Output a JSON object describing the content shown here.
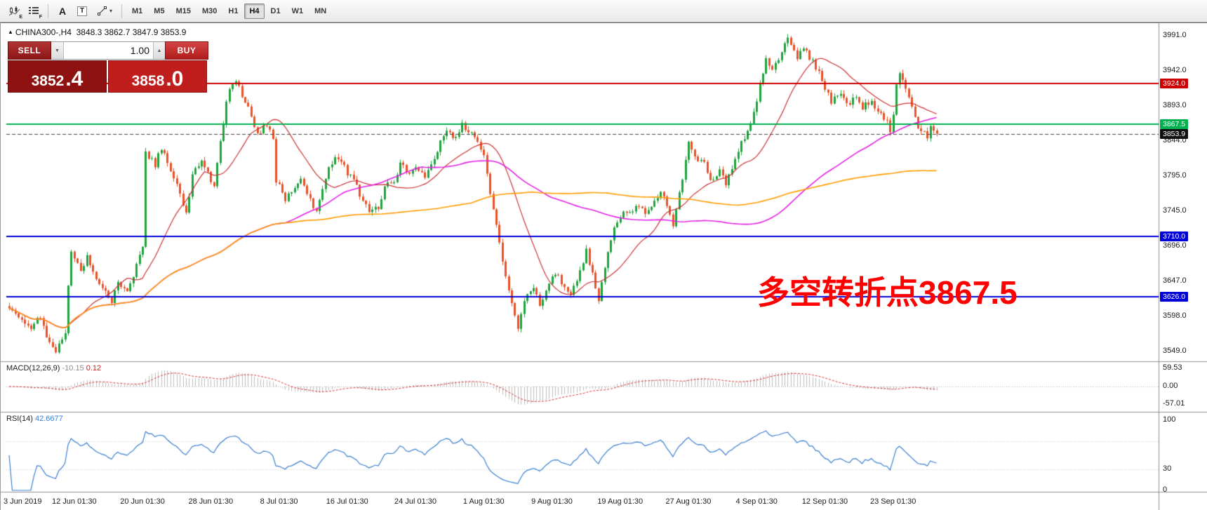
{
  "toolbar": {
    "tools": [
      {
        "name": "candlestick-tool",
        "sub": "E"
      },
      {
        "name": "list-tool",
        "sub": "F"
      },
      {
        "name": "text-tool",
        "glyph": "A"
      },
      {
        "name": "textbox-tool",
        "glyph": "T"
      },
      {
        "name": "draw-tool",
        "caret": "▾"
      }
    ],
    "timeframes": [
      "M1",
      "M5",
      "M15",
      "M30",
      "H1",
      "H4",
      "D1",
      "W1",
      "MN"
    ],
    "selected_timeframe": "H4"
  },
  "chart": {
    "header": {
      "collapse_icon": "▲",
      "symbol": "CHINA300-,H4",
      "ohlc_text": "3848.3 3862.7 3847.9 3853.9"
    },
    "one_click": {
      "sell_label": "SELL",
      "buy_label": "BUY",
      "volume": "1.00",
      "sell_price": "3852.4",
      "buy_price": "3858.0",
      "sell_price_main": "3852",
      "sell_price_big": ".4",
      "buy_price_main": "3858",
      "buy_price_big": ".0",
      "volume_dropdown_icon": "▼",
      "volume_up_icon": "▲"
    },
    "annotation": {
      "text": "多空转折点3867.5",
      "color": "#fe0000"
    },
    "panels": {
      "macd": {
        "label": "MACD(12,26,9)",
        "value_main": "-10.15",
        "value_signal": "0.12",
        "axis": [
          "59.53",
          "0.00",
          "-57.01"
        ]
      },
      "rsi": {
        "label": "RSI(14)",
        "value": "42.6677",
        "axis": [
          "100",
          "30",
          "0"
        ]
      }
    }
  },
  "chart_data": {
    "type": "candlestick",
    "symbol": "CHINA300-",
    "timeframe": "H4",
    "ohlc": {
      "open": 3848.3,
      "high": 3862.7,
      "low": 3847.9,
      "close": 3853.9
    },
    "ylim": [
      3549.0,
      3991.0
    ],
    "price_axis_ticks": [
      3991.0,
      3942.0,
      3893.0,
      3844.0,
      3795.0,
      3745.0,
      3696.0,
      3647.0,
      3598.0,
      3549.0
    ],
    "candle_count": 300,
    "last_close": 3853.9,
    "candle_colors": {
      "up": "#1fa33e",
      "down": "#e8522a"
    },
    "close_anchors": [
      [
        0,
        3612
      ],
      [
        3,
        3600
      ],
      [
        7,
        3580
      ],
      [
        10,
        3598
      ],
      [
        13,
        3560
      ],
      [
        15,
        3550
      ],
      [
        18,
        3575
      ],
      [
        19,
        3640
      ],
      [
        20,
        3690
      ],
      [
        23,
        3665
      ],
      [
        25,
        3680
      ],
      [
        28,
        3650
      ],
      [
        30,
        3640
      ],
      [
        33,
        3620
      ],
      [
        35,
        3645
      ],
      [
        38,
        3630
      ],
      [
        40,
        3655
      ],
      [
        43,
        3700
      ],
      [
        44,
        3830
      ],
      [
        47,
        3810
      ],
      [
        49,
        3835
      ],
      [
        52,
        3800
      ],
      [
        54,
        3780
      ],
      [
        57,
        3745
      ],
      [
        59,
        3795
      ],
      [
        62,
        3820
      ],
      [
        64,
        3800
      ],
      [
        66,
        3780
      ],
      [
        69,
        3870
      ],
      [
        71,
        3920
      ],
      [
        73,
        3930
      ],
      [
        75,
        3905
      ],
      [
        78,
        3880
      ],
      [
        80,
        3855
      ],
      [
        83,
        3865
      ],
      [
        85,
        3850
      ],
      [
        86,
        3790
      ],
      [
        89,
        3760
      ],
      [
        91,
        3775
      ],
      [
        94,
        3790
      ],
      [
        96,
        3770
      ],
      [
        99,
        3745
      ],
      [
        101,
        3780
      ],
      [
        104,
        3815
      ],
      [
        106,
        3820
      ],
      [
        109,
        3800
      ],
      [
        111,
        3790
      ],
      [
        114,
        3760
      ],
      [
        116,
        3745
      ],
      [
        119,
        3750
      ],
      [
        121,
        3780
      ],
      [
        124,
        3790
      ],
      [
        126,
        3810
      ],
      [
        129,
        3800
      ],
      [
        131,
        3810
      ],
      [
        134,
        3795
      ],
      [
        136,
        3810
      ],
      [
        139,
        3840
      ],
      [
        141,
        3855
      ],
      [
        144,
        3850
      ],
      [
        146,
        3865
      ],
      [
        149,
        3855
      ],
      [
        151,
        3840
      ],
      [
        153,
        3820
      ],
      [
        155,
        3770
      ],
      [
        158,
        3700
      ],
      [
        160,
        3650
      ],
      [
        163,
        3600
      ],
      [
        164,
        3580
      ],
      [
        166,
        3620
      ],
      [
        169,
        3640
      ],
      [
        171,
        3615
      ],
      [
        174,
        3640
      ],
      [
        176,
        3660
      ],
      [
        179,
        3640
      ],
      [
        181,
        3625
      ],
      [
        184,
        3660
      ],
      [
        186,
        3690
      ],
      [
        189,
        3640
      ],
      [
        190,
        3620
      ],
      [
        193,
        3690
      ],
      [
        195,
        3720
      ],
      [
        198,
        3745
      ],
      [
        200,
        3740
      ],
      [
        203,
        3755
      ],
      [
        205,
        3745
      ],
      [
        208,
        3760
      ],
      [
        210,
        3775
      ],
      [
        213,
        3740
      ],
      [
        214,
        3725
      ],
      [
        216,
        3770
      ],
      [
        219,
        3840
      ],
      [
        221,
        3820
      ],
      [
        224,
        3810
      ],
      [
        226,
        3790
      ],
      [
        229,
        3800
      ],
      [
        231,
        3785
      ],
      [
        234,
        3820
      ],
      [
        236,
        3840
      ],
      [
        239,
        3870
      ],
      [
        241,
        3900
      ],
      [
        244,
        3960
      ],
      [
        246,
        3940
      ],
      [
        249,
        3970
      ],
      [
        251,
        3985
      ],
      [
        254,
        3960
      ],
      [
        256,
        3975
      ],
      [
        259,
        3955
      ],
      [
        261,
        3940
      ],
      [
        263,
        3920
      ],
      [
        265,
        3900
      ],
      [
        268,
        3910
      ],
      [
        270,
        3895
      ],
      [
        273,
        3905
      ],
      [
        275,
        3890
      ],
      [
        278,
        3900
      ],
      [
        280,
        3885
      ],
      [
        283,
        3870
      ],
      [
        284,
        3855
      ],
      [
        285,
        3880
      ],
      [
        286,
        3920
      ],
      [
        287,
        3935
      ],
      [
        290,
        3905
      ],
      [
        292,
        3875
      ],
      [
        293,
        3860
      ],
      [
        296,
        3850
      ],
      [
        297,
        3862
      ],
      [
        298,
        3858
      ],
      [
        299,
        3853.9
      ]
    ],
    "moving_averages": [
      {
        "period": 20,
        "color": "#cc3333"
      },
      {
        "period": 90,
        "color": "#e522e5"
      },
      {
        "period": 150,
        "color": "#ff9d00"
      }
    ],
    "horizontal_lines": [
      {
        "price": 3924.0,
        "tag": "3924.0",
        "color": "#cc0000",
        "style": "solid",
        "width": 2
      },
      {
        "price": 3867.5,
        "tag": "3867.5",
        "color": "#00b050",
        "style": "solid",
        "width": 2
      },
      {
        "price": 3853.9,
        "tag": "3853.9",
        "color": "#444444",
        "style": "dash",
        "width": 1,
        "tag_bg": "#101010"
      },
      {
        "price": 3710.0,
        "tag": "3710.0",
        "color": "#0000d8",
        "style": "solid",
        "width": 2
      },
      {
        "price": 3626.0,
        "tag": "3626.0",
        "color": "#0000d8",
        "style": "solid",
        "width": 2
      }
    ],
    "indicators": [
      {
        "name": "MACD",
        "params": [
          12,
          26,
          9
        ],
        "current": [
          -10.15,
          0.12
        ],
        "axis_values": [
          59.53,
          0,
          -57.01
        ],
        "histogram_color": "#bdbdbd",
        "signal_color": "#d83434"
      },
      {
        "name": "RSI",
        "params": [
          14
        ],
        "current": 42.6677,
        "axis_values": [
          100,
          30,
          0
        ],
        "line_color": "#3a7fd0"
      }
    ],
    "time_axis": [
      [
        "3 Jun 2019",
        0
      ],
      [
        "12 Jun 01:30",
        21
      ],
      [
        "20 Jun 01:30",
        43
      ],
      [
        "28 Jun 01:30",
        65
      ],
      [
        "8 Jul 01:30",
        87
      ],
      [
        "16 Jul 01:30",
        109
      ],
      [
        "24 Jul 01:30",
        131
      ],
      [
        "1 Aug 01:30",
        153
      ],
      [
        "9 Aug 01:30",
        175
      ],
      [
        "19 Aug 01:30",
        197
      ],
      [
        "27 Aug 01:30",
        219
      ],
      [
        "4 Sep 01:30",
        241
      ],
      [
        "12 Sep 01:30",
        263
      ],
      [
        "23 Sep 01:30",
        285
      ]
    ]
  }
}
